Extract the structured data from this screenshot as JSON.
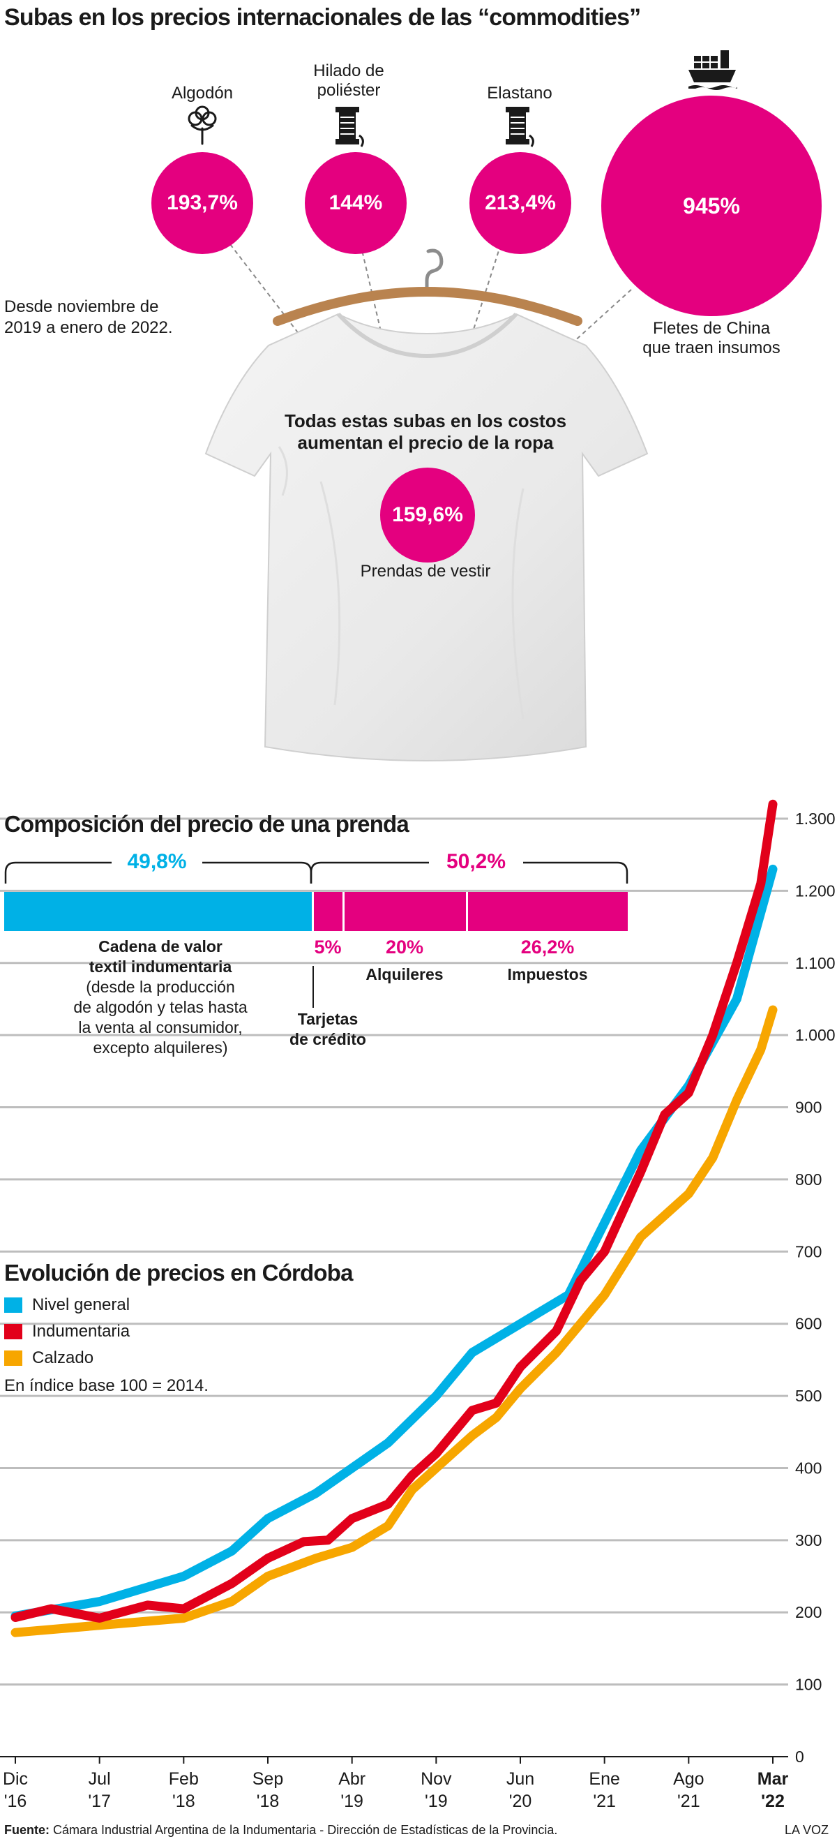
{
  "header": {
    "title": "Subas en los precios internacionales de las “commodities”",
    "period_note_line1": "Desde noviembre de",
    "period_note_line2": "2019 a enero de 2022."
  },
  "commodities": [
    {
      "label_lines": [
        "Algodón"
      ],
      "value": "193,7%",
      "icon": "cotton-icon"
    },
    {
      "label_lines": [
        "Hilado de",
        "poliéster"
      ],
      "value": "144%",
      "icon": "thread-spool-icon"
    },
    {
      "label_lines": [
        "Elastano"
      ],
      "value": "213,4%",
      "icon": "thread-spool-icon"
    },
    {
      "label_lines": [
        "Fletes de China",
        "que traen insumos"
      ],
      "value": "945%",
      "icon": "cargo-ship-icon"
    }
  ],
  "garment": {
    "heading_line1": "Todas estas subas en los costos",
    "heading_line2": "aumentan el precio de la ropa",
    "value": "159,6%",
    "label": "Prendas de vestir"
  },
  "composition": {
    "title": "Composición del precio de una prenda",
    "group_left": "49,8%",
    "group_right": "50,2%",
    "segments": [
      {
        "pct": 49.8,
        "color": "#00b1e6",
        "value_label": "",
        "label_lines": [
          "Cadena de valor",
          "textil indumentaria"
        ],
        "sub_lines": [
          "(desde la producción",
          "de algodón y telas hasta",
          "la venta al consumidor,",
          "excepto alquileres)"
        ]
      },
      {
        "pct": 5,
        "color": "#e4007f",
        "value_label": "5%",
        "label_lines": [
          "Tarjetas",
          "de crédito"
        ],
        "sub_lines": []
      },
      {
        "pct": 20,
        "color": "#e4007f",
        "value_label": "20%",
        "label_lines": [
          "Alquileres"
        ],
        "sub_lines": []
      },
      {
        "pct": 26.2,
        "color": "#e4007f",
        "value_label": "26,2%",
        "label_lines": [
          "Impuestos"
        ],
        "sub_lines": []
      }
    ]
  },
  "evolution": {
    "title": "Evolución de precios en Córdoba",
    "note": "En índice base 100 = 2014."
  },
  "footer": {
    "source_label": "Fuente:",
    "source_text": " Cámara Industrial Argentina de la Indumentaria - Dirección de Estadísticas de la Provincia.",
    "brand": "LA VOZ"
  },
  "chart_data": {
    "type": "line",
    "title": "Evolución de precios en Córdoba",
    "ylim": [
      0,
      1300
    ],
    "yticks": [
      0,
      100,
      200,
      300,
      400,
      500,
      600,
      700,
      800,
      900,
      1000,
      1100,
      1200,
      1300
    ],
    "ytick_labels": [
      "0",
      "100",
      "200",
      "300",
      "400",
      "500",
      "600",
      "700",
      "800",
      "900",
      "1.000",
      "1.100",
      "1.200",
      "1.300"
    ],
    "grid": true,
    "legend_position": "top-left",
    "xticks": [
      {
        "x": "2016-12",
        "line1": "Dic",
        "line2": "'16"
      },
      {
        "x": "2017-07",
        "line1": "Jul",
        "line2": "'17"
      },
      {
        "x": "2018-02",
        "line1": "Feb",
        "line2": "'18"
      },
      {
        "x": "2018-09",
        "line1": "Sep",
        "line2": "'18"
      },
      {
        "x": "2019-04",
        "line1": "Abr",
        "line2": "'19"
      },
      {
        "x": "2019-11",
        "line1": "Nov",
        "line2": "'19"
      },
      {
        "x": "2020-06",
        "line1": "Jun",
        "line2": "'20"
      },
      {
        "x": "2021-01",
        "line1": "Ene",
        "line2": "'21"
      },
      {
        "x": "2021-08",
        "line1": "Ago",
        "line2": "'21"
      },
      {
        "x": "2022-03",
        "line1": "Mar",
        "line2": "'22",
        "bold": true
      }
    ],
    "series": [
      {
        "name": "Nivel general",
        "color": "#00b1e6",
        "points": [
          [
            "2016-12",
            195
          ],
          [
            "2017-07",
            215
          ],
          [
            "2018-02",
            250
          ],
          [
            "2018-06",
            285
          ],
          [
            "2018-09",
            330
          ],
          [
            "2019-01",
            365
          ],
          [
            "2019-04",
            400
          ],
          [
            "2019-07",
            435
          ],
          [
            "2019-11",
            500
          ],
          [
            "2020-02",
            560
          ],
          [
            "2020-06",
            600
          ],
          [
            "2020-10",
            640
          ],
          [
            "2021-01",
            740
          ],
          [
            "2021-04",
            840
          ],
          [
            "2021-08",
            930
          ],
          [
            "2021-12",
            1050
          ],
          [
            "2022-03",
            1230
          ]
        ]
      },
      {
        "name": "Indumentaria",
        "color": "#e2001a",
        "points": [
          [
            "2016-12",
            193
          ],
          [
            "2017-03",
            205
          ],
          [
            "2017-07",
            192
          ],
          [
            "2017-11",
            210
          ],
          [
            "2018-02",
            205
          ],
          [
            "2018-06",
            240
          ],
          [
            "2018-09",
            275
          ],
          [
            "2018-12",
            298
          ],
          [
            "2019-02",
            300
          ],
          [
            "2019-04",
            330
          ],
          [
            "2019-07",
            350
          ],
          [
            "2019-09",
            390
          ],
          [
            "2019-11",
            420
          ],
          [
            "2020-02",
            480
          ],
          [
            "2020-04",
            490
          ],
          [
            "2020-06",
            540
          ],
          [
            "2020-09",
            590
          ],
          [
            "2020-11",
            660
          ],
          [
            "2021-01",
            700
          ],
          [
            "2021-04",
            810
          ],
          [
            "2021-06",
            890
          ],
          [
            "2021-08",
            920
          ],
          [
            "2021-10",
            1000
          ],
          [
            "2021-12",
            1100
          ],
          [
            "2022-02",
            1210
          ],
          [
            "2022-03",
            1320
          ]
        ]
      },
      {
        "name": "Calzado",
        "color": "#f7a600",
        "points": [
          [
            "2016-12",
            172
          ],
          [
            "2017-07",
            182
          ],
          [
            "2018-02",
            192
          ],
          [
            "2018-06",
            215
          ],
          [
            "2018-09",
            250
          ],
          [
            "2019-01",
            275
          ],
          [
            "2019-04",
            290
          ],
          [
            "2019-07",
            320
          ],
          [
            "2019-09",
            370
          ],
          [
            "2019-11",
            400
          ],
          [
            "2020-02",
            445
          ],
          [
            "2020-04",
            470
          ],
          [
            "2020-06",
            510
          ],
          [
            "2020-09",
            560
          ],
          [
            "2020-11",
            600
          ],
          [
            "2021-01",
            640
          ],
          [
            "2021-04",
            720
          ],
          [
            "2021-08",
            780
          ],
          [
            "2021-10",
            830
          ],
          [
            "2021-12",
            910
          ],
          [
            "2022-02",
            980
          ],
          [
            "2022-03",
            1035
          ]
        ]
      }
    ]
  }
}
